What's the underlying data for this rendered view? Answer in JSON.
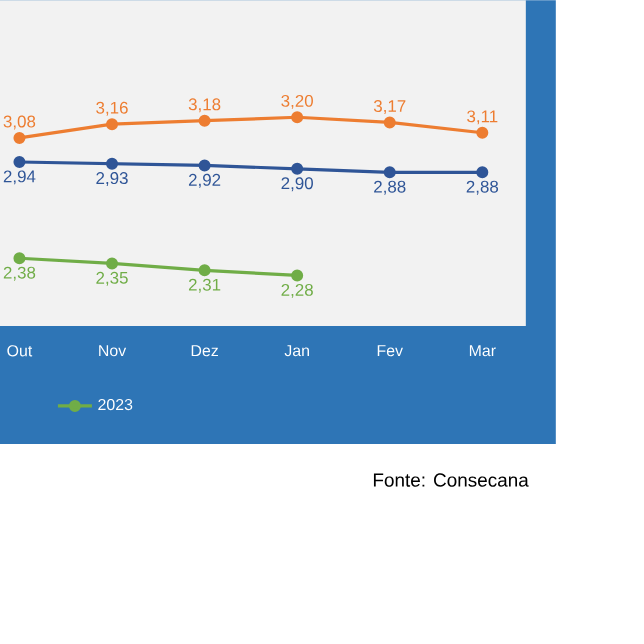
{
  "chart_data": {
    "type": "line",
    "categories": [
      "Out",
      "Nov",
      "Dez",
      "Jan",
      "Fev",
      "Mar"
    ],
    "series": [
      {
        "color": "#ed7d31",
        "values": [
          3.08,
          3.16,
          3.18,
          3.2,
          3.17,
          3.11
        ],
        "value_labels": [
          "3,08",
          "3,16",
          "3,18",
          "3,20",
          "3,17",
          "3,11"
        ]
      },
      {
        "color": "#2f5597",
        "values": [
          2.94,
          2.93,
          2.92,
          2.9,
          2.88,
          2.88
        ],
        "value_labels": [
          "2,94",
          "2,93",
          "2,92",
          "2,90",
          "2,88",
          "2,88"
        ]
      },
      {
        "name": "2023",
        "color": "#70ad47",
        "values": [
          2.38,
          2.35,
          2.31,
          2.28,
          null,
          null
        ],
        "value_labels": [
          "2,38",
          "2,35",
          "2,31",
          "2,28",
          null,
          null
        ]
      }
    ],
    "marker": "circle",
    "line_style": "solid",
    "legend": "bottom",
    "grid": false,
    "annotations": [
      "Fonte: Consecana"
    ]
  }
}
